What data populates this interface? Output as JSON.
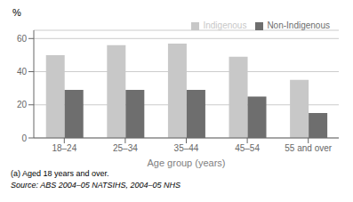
{
  "chart_data": {
    "type": "bar",
    "categories": [
      "18–24",
      "25–34",
      "35–44",
      "45–54",
      "55 and over"
    ],
    "series": [
      {
        "name": "Indigenous",
        "color": "#c8c8c8",
        "values": [
          50,
          56,
          57,
          49,
          35
        ]
      },
      {
        "name": "Non-Indigenous",
        "color": "#6e6e6e",
        "values": [
          29,
          29,
          29,
          25,
          15
        ]
      }
    ],
    "ylim": [
      0,
      65
    ],
    "yticks": [
      0,
      20,
      40,
      60
    ],
    "ylabel": "%",
    "xlabel": "Age group (years)",
    "legend": "upper right",
    "grid": true,
    "annotations": [
      "(a) Aged 18 years and over.",
      "Source: ABS 2004–05 NATSIHS, 2004–05 NHS"
    ]
  }
}
